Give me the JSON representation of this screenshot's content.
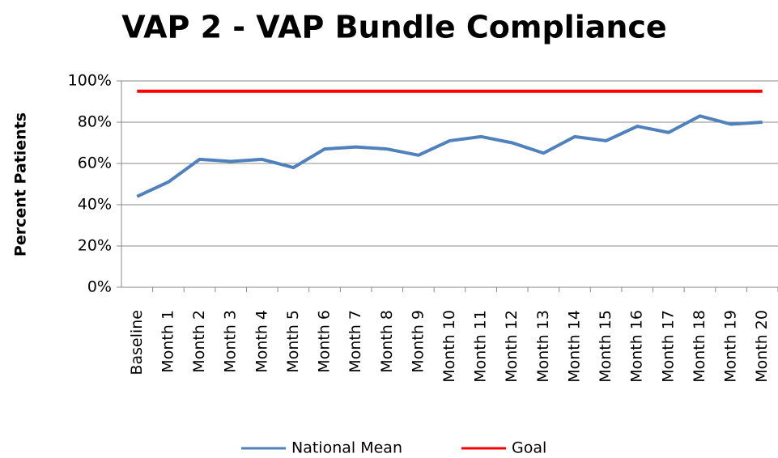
{
  "chart_data": {
    "type": "line",
    "title": "VAP 2 - VAP Bundle Compliance",
    "ylabel": "Percent Patients",
    "categories": [
      "Baseline",
      "Month 1",
      "Month 2",
      "Month 3",
      "Month 4",
      "Month 5",
      "Month 6",
      "Month 7",
      "Month 8",
      "Month 9",
      "Month 10",
      "Month 11",
      "Month 12",
      "Month 13",
      "Month 14",
      "Month 15",
      "Month 16",
      "Month 17",
      "Month 18",
      "Month 19",
      "Month 20"
    ],
    "series": [
      {
        "name": "National Mean",
        "color": "#4f81bd",
        "values": [
          44,
          51,
          62,
          61,
          62,
          58,
          67,
          68,
          67,
          64,
          71,
          73,
          70,
          65,
          73,
          71,
          78,
          75,
          83,
          79,
          80
        ]
      },
      {
        "name": "Goal",
        "color": "#ff0000",
        "values": [
          95,
          95,
          95,
          95,
          95,
          95,
          95,
          95,
          95,
          95,
          95,
          95,
          95,
          95,
          95,
          95,
          95,
          95,
          95,
          95,
          95
        ]
      }
    ],
    "ylim": [
      0,
      100
    ],
    "yticks": [
      {
        "value": 0,
        "label": "0%"
      },
      {
        "value": 20,
        "label": "20%"
      },
      {
        "value": 40,
        "label": "40%"
      },
      {
        "value": 60,
        "label": "60%"
      },
      {
        "value": 80,
        "label": "80%"
      },
      {
        "value": 100,
        "label": "100%"
      }
    ],
    "grid": true,
    "legend": "bottom"
  }
}
